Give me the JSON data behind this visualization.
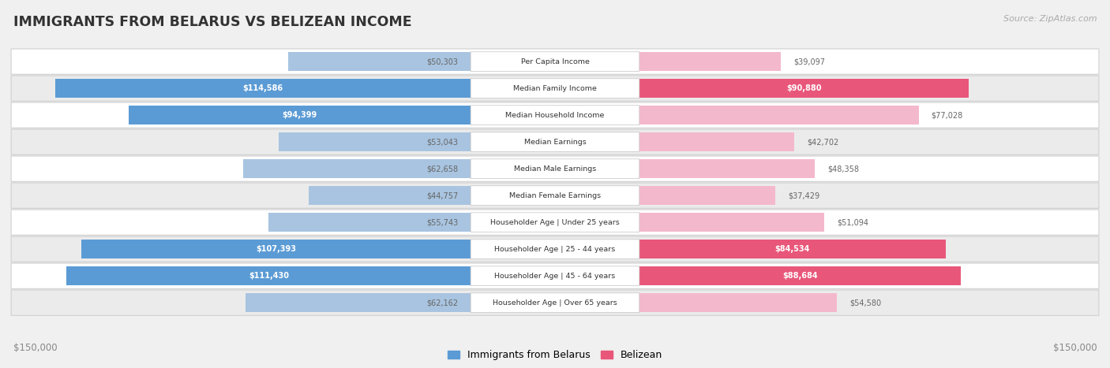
{
  "title": "IMMIGRANTS FROM BELARUS VS BELIZEAN INCOME",
  "source": "Source: ZipAtlas.com",
  "categories": [
    "Per Capita Income",
    "Median Family Income",
    "Median Household Income",
    "Median Earnings",
    "Median Male Earnings",
    "Median Female Earnings",
    "Householder Age | Under 25 years",
    "Householder Age | 25 - 44 years",
    "Householder Age | 45 - 64 years",
    "Householder Age | Over 65 years"
  ],
  "belarus_values": [
    50303,
    114586,
    94399,
    53043,
    62658,
    44757,
    55743,
    107393,
    111430,
    62162
  ],
  "belizean_values": [
    39097,
    90880,
    77028,
    42702,
    48358,
    37429,
    51094,
    84534,
    88684,
    54580
  ],
  "max_value": 150000,
  "belarus_color_light": "#a8c4e0",
  "belarus_color_dark": "#5b9bd5",
  "belizean_color_light": "#f4b8cc",
  "belizean_color_dark": "#e8577a",
  "threshold_belarus": 80000,
  "threshold_belizean": 80000,
  "background_color": "#f0f0f0",
  "row_colors": [
    "#ffffff",
    "#ebebeb"
  ],
  "legend_belarus": "Immigrants from Belarus",
  "legend_belizean": "Belizean",
  "xlabel_left": "$150,000",
  "xlabel_right": "$150,000",
  "outside_label_color": "#666666"
}
